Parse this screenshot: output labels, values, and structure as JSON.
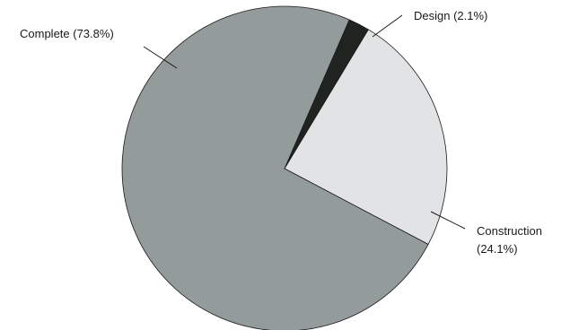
{
  "chart_data": {
    "type": "pie",
    "title": "",
    "slices": [
      {
        "label": "Complete",
        "value": 73.8,
        "display_label": "Complete (73.8%)",
        "color": "#939b9b"
      },
      {
        "label": "Design",
        "value": 2.1,
        "display_label": "Design (2.1%)",
        "color": "#1f2420"
      },
      {
        "label": "Construction",
        "value": 24.1,
        "display_label_line1": "Construction",
        "display_label_line2": "(24.1%)",
        "color": "#e2e3e5"
      }
    ],
    "legend": "none",
    "labels": "outside-with-leader-lines"
  }
}
